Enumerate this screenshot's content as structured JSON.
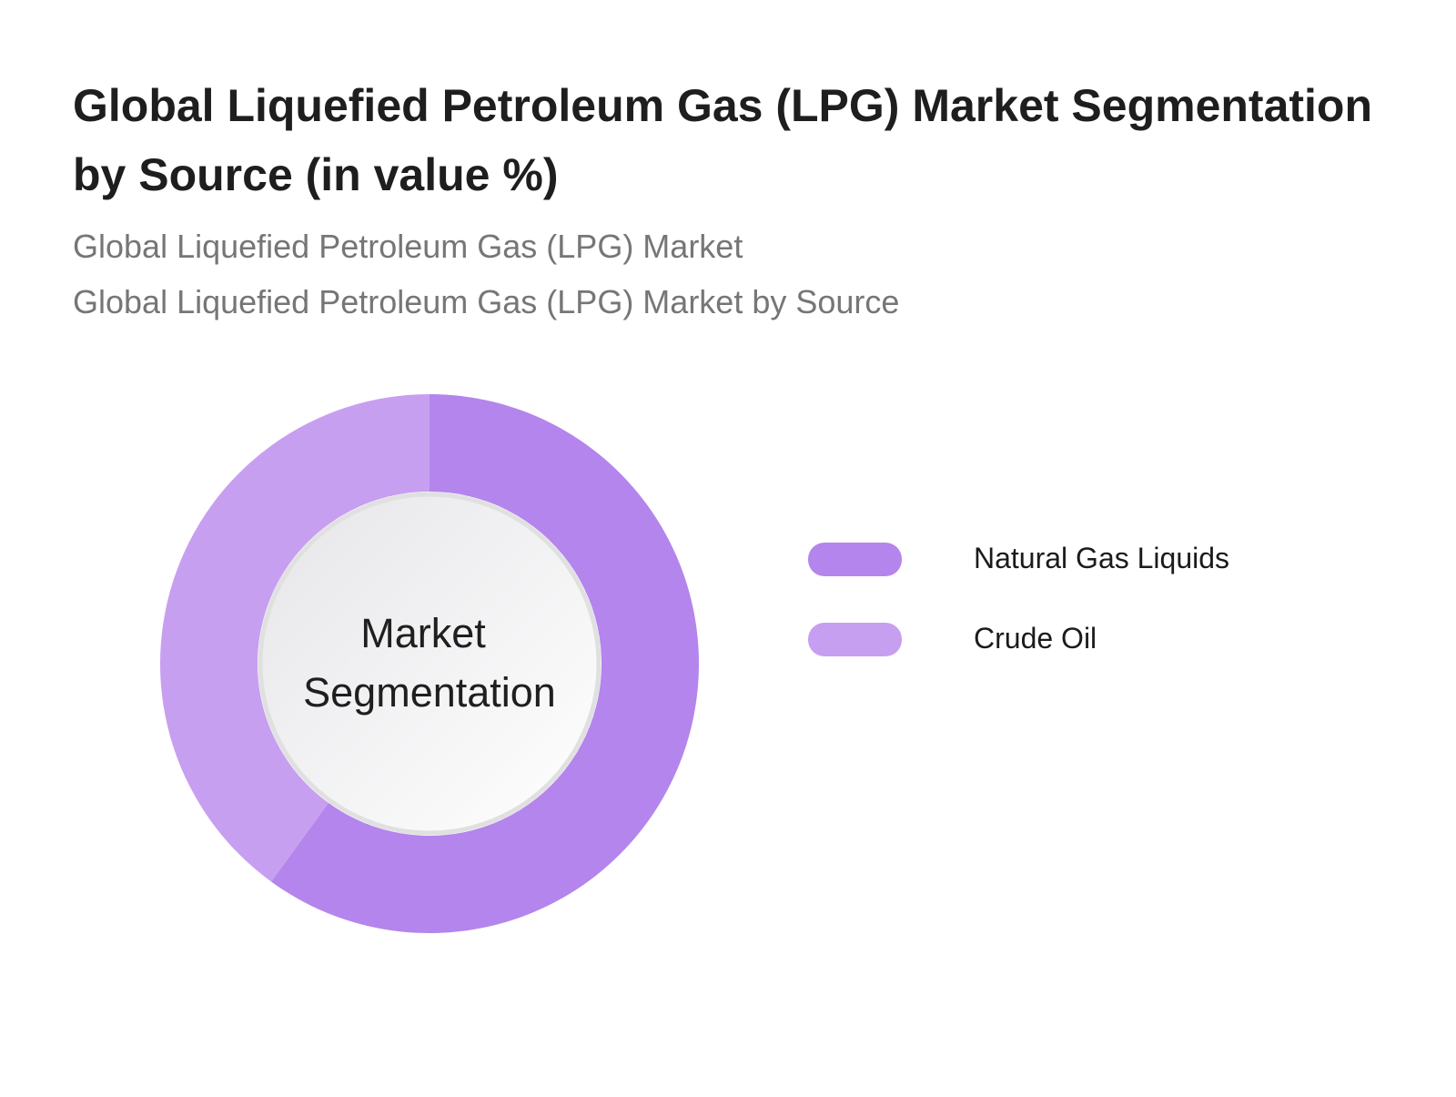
{
  "header": {
    "title": "Global Liquefied Petroleum Gas (LPG) Market Segmentation by Source (in value %)",
    "subtitle_1": "Global Liquefied Petroleum Gas (LPG) Market",
    "subtitle_2": "Global Liquefied Petroleum Gas (LPG) Market by Source"
  },
  "chart_data": {
    "type": "pie",
    "donut": true,
    "title": "Global Liquefied Petroleum Gas (LPG) Market Segmentation by Source (in value %)",
    "subtitle": "Global Liquefied Petroleum Gas (LPG) Market by Source",
    "center_label": [
      "Market",
      "Segmentation"
    ],
    "categories": [
      "Natural Gas Liquids",
      "Crude Oil"
    ],
    "values": [
      60,
      40
    ],
    "unit": "%",
    "colors": [
      "#b485ec",
      "#c79ff0"
    ],
    "legend_position": "right"
  }
}
